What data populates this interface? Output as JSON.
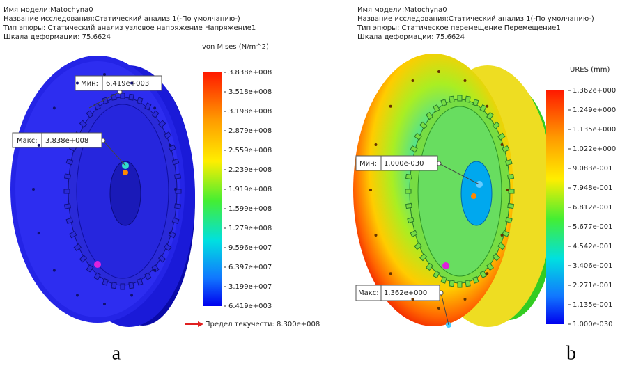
{
  "panels": [
    {
      "header": [
        "Имя модели:Matochyna0",
        "Название исследования:Статический анализ 1(-По умолчанию-)",
        "Тип эпюры: Статический анализ узловое напряжение Напряжение1",
        "Шкала деформации: 75.6624"
      ],
      "legend_title": "von Mises (N/m^2)",
      "scale_labels": [
        "3.838e+008",
        "3.518e+008",
        "3.198e+008",
        "2.879e+008",
        "2.559e+008",
        "2.239e+008",
        "1.919e+008",
        "1.599e+008",
        "1.279e+008",
        "9.596e+007",
        "6.397e+007",
        "3.199e+007",
        "6.419e+003"
      ],
      "min_label": "Мин:",
      "min_value": "6.419e+003",
      "max_label": "Макс:",
      "max_value": "3.838e+008",
      "yield_note": "Предел текучести: 8.300e+008",
      "caption": "a"
    },
    {
      "header": [
        "Имя модели:Matochyna0",
        "Название исследования:Статический анализ 1(-По умолчанию-)",
        "Тип эпюры: Статическое перемещение Перемещение1",
        "Шкала деформации: 75.6624"
      ],
      "legend_title": "URES (mm)",
      "scale_labels": [
        "1.362e+000",
        "1.249e+000",
        "1.135e+000",
        "1.022e+000",
        "9.083e-001",
        "7.948e-001",
        "6.812e-001",
        "5.677e-001",
        "4.542e-001",
        "3.406e-001",
        "2.271e-001",
        "1.135e-001",
        "1.000e-030"
      ],
      "min_label": "Мин:",
      "min_value": "1.000e-030",
      "max_label": "Макс:",
      "max_value": "1.362e+000",
      "caption": "b"
    }
  ]
}
